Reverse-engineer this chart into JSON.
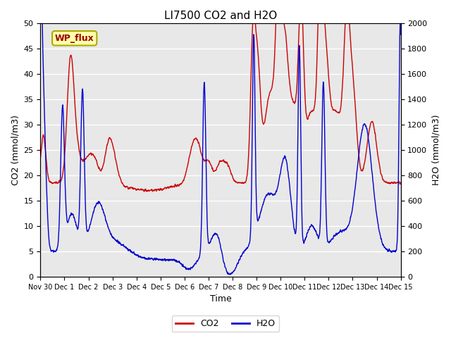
{
  "title": "LI7500 CO2 and H2O",
  "xlabel": "Time",
  "ylabel_left": "CO2 (mmol/m3)",
  "ylabel_right": "H2O (mmol/m3)",
  "ylim_left": [
    0,
    50
  ],
  "ylim_right": [
    0,
    2000
  ],
  "yticks_left": [
    0,
    5,
    10,
    15,
    20,
    25,
    30,
    35,
    40,
    45,
    50
  ],
  "yticks_right": [
    0,
    200,
    400,
    600,
    800,
    1000,
    1200,
    1400,
    1600,
    1800,
    2000
  ],
  "plot_bg_color": "#e8e8e8",
  "fig_bg_color": "#ffffff",
  "co2_color": "#cc0000",
  "h2o_color": "#0000cc",
  "legend_co2": "CO2",
  "legend_h2o": "H2O",
  "annotation_text": "WP_flux",
  "annotation_bg": "#ffffaa",
  "annotation_border": "#aaaa00",
  "annotation_text_color": "#990000",
  "x_tick_labels": [
    "Nov 30",
    "Dec 1",
    "Dec 2",
    "Dec 3",
    "Dec 4",
    "Dec 5",
    "Dec 6",
    "Dec 7",
    "Dec 8",
    "Dec 9",
    "Dec 10",
    "Dec 11",
    "Dec 12",
    "Dec 13",
    "Dec 14",
    "Dec 15"
  ],
  "x_tick_positions": [
    0,
    1,
    2,
    3,
    4,
    5,
    6,
    7,
    8,
    9,
    10,
    11,
    12,
    13,
    14,
    15
  ],
  "xlim": [
    0,
    15
  ],
  "grid_color": "#ffffff",
  "linewidth": 1.0
}
